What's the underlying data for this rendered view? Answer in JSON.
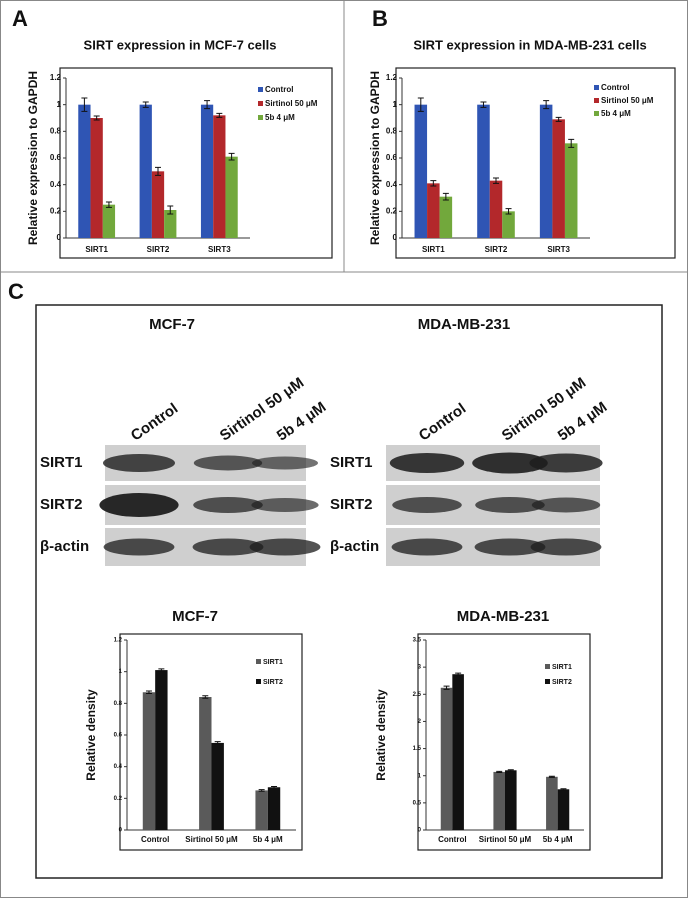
{
  "panels": [
    "A",
    "B",
    "C"
  ],
  "chart_data": [
    {
      "type": "bar",
      "title": "SIRT expression in MCF-7 cells",
      "y_label": "Relative expression to GAPDH",
      "categories": [
        "SIRT1",
        "SIRT2",
        "SIRT3"
      ],
      "series": [
        {
          "name": "Control",
          "color": "#2f55b4",
          "values": [
            1.0,
            1.0,
            1.0
          ],
          "errors": [
            0.05,
            0.02,
            0.03
          ]
        },
        {
          "name": "Sirtinol 50 μM",
          "color": "#b3282b",
          "values": [
            0.9,
            0.5,
            0.92
          ],
          "errors": [
            0.015,
            0.03,
            0.015
          ]
        },
        {
          "name": "5b 4 μM",
          "color": "#72a83c",
          "values": [
            0.25,
            0.21,
            0.61
          ],
          "errors": [
            0.02,
            0.03,
            0.025
          ]
        }
      ],
      "ylim": [
        0,
        1.2
      ],
      "yticks": [
        0,
        0.2,
        0.4,
        0.6,
        0.8,
        1,
        1.2
      ]
    },
    {
      "type": "bar",
      "title": "SIRT expression in MDA-MB-231 cells",
      "y_label": "Relative expression to GAPDH",
      "categories": [
        "SIRT1",
        "SIRT2",
        "SIRT3"
      ],
      "series": [
        {
          "name": "Control",
          "color": "#2f55b4",
          "values": [
            1.0,
            1.0,
            1.0
          ],
          "errors": [
            0.05,
            0.02,
            0.03
          ]
        },
        {
          "name": "Sirtinol 50 μM",
          "color": "#b3282b",
          "values": [
            0.41,
            0.43,
            0.89
          ],
          "errors": [
            0.02,
            0.02,
            0.015
          ]
        },
        {
          "name": "5b 4 μM",
          "color": "#72a83c",
          "values": [
            0.31,
            0.2,
            0.71
          ],
          "errors": [
            0.025,
            0.02,
            0.03
          ]
        }
      ],
      "ylim": [
        0,
        1.2
      ],
      "yticks": [
        0,
        0.2,
        0.4,
        0.6,
        0.8,
        1,
        1.2
      ]
    },
    {
      "type": "bar",
      "title": "MCF-7",
      "y_label": "Relative density",
      "categories": [
        "Control",
        "Sirtinol 50 μM",
        "5b 4 μM"
      ],
      "series": [
        {
          "name": "SIRT1",
          "color": "#5a5a5a",
          "values": [
            0.87,
            0.84,
            0.25
          ],
          "errors": [
            0.008,
            0.008,
            0.005
          ]
        },
        {
          "name": "SIRT2",
          "color": "#111111",
          "values": [
            1.01,
            0.55,
            0.27
          ],
          "errors": [
            0.008,
            0.008,
            0.005
          ]
        }
      ],
      "ylim": [
        0,
        1.2
      ],
      "yticks": [
        0,
        0.2,
        0.4,
        0.6,
        0.8,
        1,
        1.2
      ]
    },
    {
      "type": "bar",
      "title": "MDA-MB-231",
      "y_label": "Relative density",
      "categories": [
        "Control",
        "Sirtinol 50 μM",
        "5b 4 μM"
      ],
      "series": [
        {
          "name": "SIRT1",
          "color": "#5a5a5a",
          "values": [
            2.62,
            1.07,
            0.98
          ],
          "errors": [
            0.03,
            0.01,
            0.01
          ]
        },
        {
          "name": "SIRT2",
          "color": "#111111",
          "values": [
            2.87,
            1.1,
            0.75
          ],
          "errors": [
            0.02,
            0.01,
            0.01
          ]
        }
      ],
      "ylim": [
        0,
        3.5
      ],
      "yticks": [
        0,
        0.5,
        1,
        1.5,
        2,
        2.5,
        3,
        3.5
      ]
    }
  ],
  "blots": [
    {
      "title": "MCF-7",
      "lanes": [
        "Control",
        "Sirtinol 50 μM",
        "5b 4 μM"
      ],
      "rows": [
        "SIRT1",
        "SIRT2",
        "β-actin"
      ]
    },
    {
      "title": "MDA-MB-231",
      "lanes": [
        "Control",
        "Sirtinol 50 μM",
        "5b 4 μM"
      ],
      "rows": [
        "SIRT1",
        "SIRT2",
        "β-actin"
      ]
    }
  ]
}
